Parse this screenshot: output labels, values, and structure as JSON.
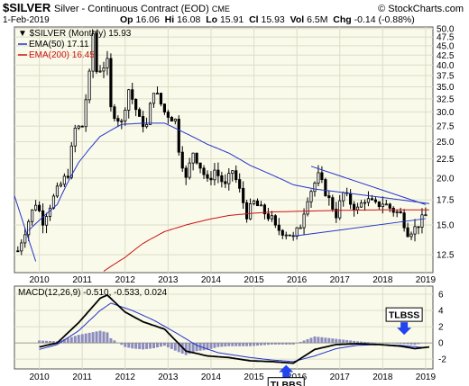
{
  "header": {
    "symbol": "$SILVER",
    "name": "Silver - Continuous Contract (EOD)",
    "exchange": "CME",
    "source": "© StockCharts.com",
    "date": "1-Feb-2019",
    "open_label": "Op",
    "open": "16.06",
    "high_label": "Hi",
    "high": "16.08",
    "low_label": "Lo",
    "low": "15.91",
    "close_label": "Cl",
    "close": "15.93",
    "vol_label": "Vol",
    "vol": "6.5M",
    "chg_label": "Chg",
    "chg": "-0.14 (-0.88%)"
  },
  "colors": {
    "panel_bg": "#fafaea",
    "grid": "#dcdcc8",
    "candle": "#000000",
    "ema50": "#2233cc",
    "ema200": "#cc1111",
    "trendline": "#2233cc",
    "histogram": "#8c8cc0",
    "macd_line": "#000000",
    "signal_line": "#2233cc",
    "arrow": "#2244ee"
  },
  "chart_data": [
    {
      "type": "candlestick",
      "title": "$SILVER (Monthly) 15.93",
      "y_scale": "log",
      "ylim": [
        11.2,
        50.5
      ],
      "y_ticks": [
        12.5,
        15.0,
        17.5,
        20.0,
        22.5,
        25.0,
        27.5,
        30.0,
        32.5,
        35.0,
        37.5,
        40.0,
        42.5,
        45.0,
        47.5,
        50.0
      ],
      "y_tick_labels": [
        "12.5",
        "15.0",
        "17.5",
        "20.0",
        "22.5",
        "25.0",
        "27.5",
        "30.0",
        "32.5",
        "35.0",
        "37.5",
        "40.0",
        "42.5",
        "45.0",
        "47.5",
        "50.0"
      ],
      "x_ticks": [
        "2010",
        "2011",
        "2012",
        "2013",
        "2014",
        "2015",
        "2016",
        "2017",
        "2018",
        "2019"
      ],
      "x_range": [
        "2009-06",
        "2019-03"
      ],
      "legend": [
        {
          "name": "$SILVER (Monthly) 15.93",
          "marker": "candle"
        },
        {
          "name": "EMA(50) 17.11",
          "color_key": "ema50"
        },
        {
          "name": "EMA(200) 16.45",
          "color_key": "ema200"
        }
      ],
      "grid": true,
      "series_close_anchors": [
        [
          "2009-07",
          12.8
        ],
        [
          "2009-09",
          14.5
        ],
        [
          "2009-12",
          17.2
        ],
        [
          "2010-02",
          15.4
        ],
        [
          "2010-06",
          18.5
        ],
        [
          "2010-09",
          20.6
        ],
        [
          "2010-11",
          27.0
        ],
        [
          "2011-01",
          27.5
        ],
        [
          "2011-03",
          37.5
        ],
        [
          "2011-04",
          48.5
        ],
        [
          "2011-05",
          38.5
        ],
        [
          "2011-08",
          40.5
        ],
        [
          "2011-09",
          30.5
        ],
        [
          "2011-12",
          28.0
        ],
        [
          "2012-02",
          34.5
        ],
        [
          "2012-05",
          28.5
        ],
        [
          "2012-07",
          27.5
        ],
        [
          "2012-09",
          34.5
        ],
        [
          "2012-12",
          30.0
        ],
        [
          "2013-03",
          28.5
        ],
        [
          "2013-04",
          24.0
        ],
        [
          "2013-06",
          19.8
        ],
        [
          "2013-08",
          23.5
        ],
        [
          "2013-12",
          19.5
        ],
        [
          "2014-02",
          21.0
        ],
        [
          "2014-05",
          19.0
        ],
        [
          "2014-07",
          21.0
        ],
        [
          "2014-11",
          16.0
        ],
        [
          "2015-01",
          17.2
        ],
        [
          "2015-03",
          16.5
        ],
        [
          "2015-06",
          15.5
        ],
        [
          "2015-07",
          14.7
        ],
        [
          "2015-11",
          14.2
        ],
        [
          "2015-12",
          13.8
        ],
        [
          "2016-02",
          15.0
        ],
        [
          "2016-04",
          17.8
        ],
        [
          "2016-07",
          20.2
        ],
        [
          "2016-10",
          17.5
        ],
        [
          "2016-12",
          16.0
        ],
        [
          "2017-02",
          18.2
        ],
        [
          "2017-04",
          17.2
        ],
        [
          "2017-06",
          16.5
        ],
        [
          "2017-08",
          17.6
        ],
        [
          "2017-11",
          16.9
        ],
        [
          "2018-01",
          17.2
        ],
        [
          "2018-04",
          16.4
        ],
        [
          "2018-06",
          16.0
        ],
        [
          "2018-08",
          14.4
        ],
        [
          "2018-10",
          14.7
        ],
        [
          "2018-12",
          15.5
        ],
        [
          "2019-01",
          15.9
        ]
      ],
      "ema50_anchors": [
        [
          "2009-10",
          14.5
        ],
        [
          "2010-06",
          17.0
        ],
        [
          "2010-12",
          22.0
        ],
        [
          "2011-06",
          25.8
        ],
        [
          "2011-12",
          27.8
        ],
        [
          "2012-06",
          28.0
        ],
        [
          "2012-12",
          28.0
        ],
        [
          "2013-06",
          26.3
        ],
        [
          "2013-12",
          24.6
        ],
        [
          "2014-06",
          23.3
        ],
        [
          "2014-12",
          21.6
        ],
        [
          "2015-06",
          20.4
        ],
        [
          "2015-12",
          19.2
        ],
        [
          "2016-06",
          18.7
        ],
        [
          "2016-12",
          18.4
        ],
        [
          "2017-06",
          18.1
        ],
        [
          "2017-12",
          17.8
        ],
        [
          "2018-06",
          17.5
        ],
        [
          "2018-12",
          17.2
        ],
        [
          "2019-02",
          17.1
        ]
      ],
      "ema200_anchors": [
        [
          "2011-07",
          11.3
        ],
        [
          "2012-01",
          12.3
        ],
        [
          "2012-06",
          13.4
        ],
        [
          "2012-12",
          14.4
        ],
        [
          "2013-06",
          15.0
        ],
        [
          "2013-12",
          15.5
        ],
        [
          "2014-06",
          15.9
        ],
        [
          "2014-12",
          16.1
        ],
        [
          "2015-06",
          16.25
        ],
        [
          "2015-12",
          16.3
        ],
        [
          "2016-06",
          16.35
        ],
        [
          "2016-12",
          16.4
        ],
        [
          "2017-06",
          16.43
        ],
        [
          "2017-12",
          16.45
        ],
        [
          "2018-06",
          16.45
        ],
        [
          "2019-02",
          16.45
        ]
      ],
      "trendlines": [
        {
          "from": [
            "2009-06",
            18.0
          ],
          "to": [
            "2009-12",
            12.0
          ]
        },
        {
          "from": [
            "2016-05",
            21.5
          ],
          "to": [
            "2019-01",
            17.0
          ]
        },
        {
          "from": [
            "2015-12",
            14.0
          ],
          "to": [
            "2019-01",
            15.6
          ]
        }
      ]
    },
    {
      "type": "line",
      "title": "MACD(12,26,9) -0.510, -0.533, 0.024",
      "ylim": [
        -3.2,
        7.0
      ],
      "y_ticks": [
        -2,
        0,
        2,
        4,
        6
      ],
      "y_tick_labels": [
        "-2",
        "0",
        "2",
        "4",
        "6"
      ],
      "x_ticks": [
        "2010",
        "2011",
        "2012",
        "2013",
        "2014",
        "2015",
        "2016",
        "2017",
        "2018",
        "2019"
      ],
      "grid": true,
      "series": [
        {
          "name": "MACD",
          "color_key": "macd_line",
          "points": [
            [
              "2010-01",
              -0.5
            ],
            [
              "2010-06",
              0.0
            ],
            [
              "2010-12",
              2.5
            ],
            [
              "2011-06",
              5.5
            ],
            [
              "2011-08",
              5.9
            ],
            [
              "2012-01",
              3.8
            ],
            [
              "2012-06",
              2.6
            ],
            [
              "2012-12",
              1.7
            ],
            [
              "2013-06",
              -1.0
            ],
            [
              "2013-12",
              -1.6
            ],
            [
              "2014-06",
              -1.8
            ],
            [
              "2014-12",
              -2.2
            ],
            [
              "2015-06",
              -2.3
            ],
            [
              "2015-12",
              -2.5
            ],
            [
              "2016-06",
              -0.8
            ],
            [
              "2016-12",
              -0.2
            ],
            [
              "2017-06",
              -0.1
            ],
            [
              "2017-12",
              -0.2
            ],
            [
              "2018-06",
              -0.4
            ],
            [
              "2018-10",
              -0.7
            ],
            [
              "2019-02",
              -0.5
            ]
          ]
        },
        {
          "name": "Signal",
          "color_key": "signal_line",
          "points": [
            [
              "2010-01",
              -0.8
            ],
            [
              "2010-06",
              -0.2
            ],
            [
              "2010-12",
              1.5
            ],
            [
              "2011-06",
              4.0
            ],
            [
              "2011-09",
              4.9
            ],
            [
              "2012-03",
              4.0
            ],
            [
              "2012-09",
              2.8
            ],
            [
              "2013-03",
              1.3
            ],
            [
              "2013-09",
              -0.3
            ],
            [
              "2014-03",
              -1.2
            ],
            [
              "2014-12",
              -1.8
            ],
            [
              "2015-06",
              -2.1
            ],
            [
              "2015-12",
              -2.3
            ],
            [
              "2016-06",
              -1.6
            ],
            [
              "2016-12",
              -0.7
            ],
            [
              "2017-06",
              -0.3
            ],
            [
              "2017-12",
              -0.2
            ],
            [
              "2018-06",
              -0.3
            ],
            [
              "2018-12",
              -0.55
            ],
            [
              "2019-02",
              -0.53
            ]
          ]
        }
      ],
      "histogram_note": "MACD minus Signal",
      "annotations": [
        {
          "text": "TLBSS",
          "at": [
            "2018-07",
            1.0
          ],
          "arrow": "down"
        },
        {
          "text": "TLBBS",
          "at": [
            "2015-10",
            -2.5
          ],
          "arrow": "up"
        }
      ]
    }
  ]
}
